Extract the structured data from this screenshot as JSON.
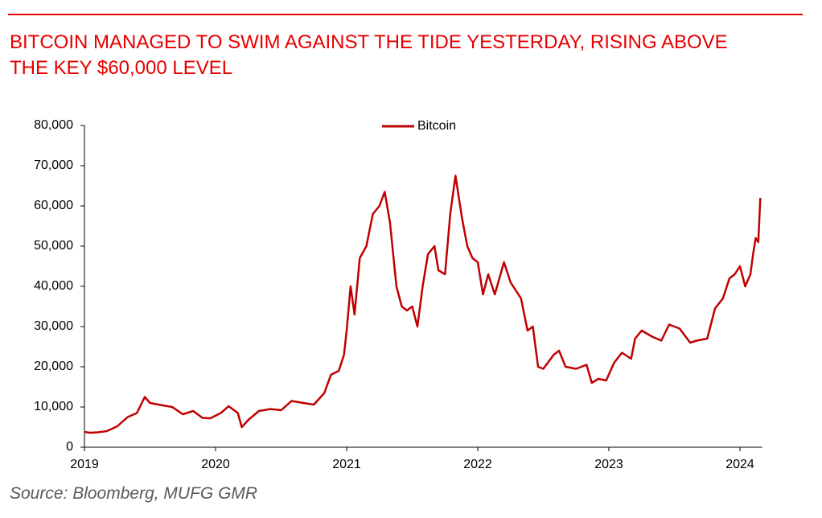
{
  "chart_data": {
    "type": "line",
    "title_lines": [
      "BITCOIN MANAGED TO SWIM AGAINST THE TIDE YESTERDAY, RISING ABOVE",
      "THE KEY $60,000 LEVEL"
    ],
    "source": "Source: Bloomberg, MUFG GMR",
    "x": [
      2019.0,
      2019.04,
      2019.1,
      2019.17,
      2019.25,
      2019.33,
      2019.4,
      2019.46,
      2019.5,
      2019.58,
      2019.67,
      2019.75,
      2019.83,
      2019.9,
      2019.96,
      2020.04,
      2020.1,
      2020.17,
      2020.2,
      2020.25,
      2020.33,
      2020.42,
      2020.5,
      2020.58,
      2020.67,
      2020.75,
      2020.83,
      2020.88,
      2020.94,
      2020.98,
      2021.0,
      2021.03,
      2021.06,
      2021.1,
      2021.15,
      2021.2,
      2021.25,
      2021.29,
      2021.33,
      2021.38,
      2021.42,
      2021.46,
      2021.5,
      2021.54,
      2021.58,
      2021.62,
      2021.67,
      2021.7,
      2021.75,
      2021.79,
      2021.83,
      2021.88,
      2021.92,
      2021.96,
      2022.0,
      2022.04,
      2022.08,
      2022.13,
      2022.2,
      2022.25,
      2022.33,
      2022.38,
      2022.42,
      2022.46,
      2022.5,
      2022.58,
      2022.62,
      2022.67,
      2022.75,
      2022.83,
      2022.87,
      2022.92,
      2022.98,
      2023.04,
      2023.1,
      2023.17,
      2023.2,
      2023.25,
      2023.33,
      2023.4,
      2023.46,
      2023.54,
      2023.62,
      2023.67,
      2023.75,
      2023.81,
      2023.87,
      2023.92,
      2023.96,
      2024.0,
      2024.04,
      2024.08,
      2024.1,
      2024.12,
      2024.14,
      2024.155
    ],
    "series": [
      {
        "name": "Bitcoin",
        "color": "#c00000",
        "values": [
          3800,
          3600,
          3700,
          4000,
          5200,
          7500,
          8500,
          12500,
          11000,
          10500,
          10000,
          8200,
          9000,
          7300,
          7200,
          8500,
          10200,
          8500,
          5000,
          6800,
          9000,
          9500,
          9200,
          11500,
          11000,
          10600,
          13500,
          18000,
          19000,
          23000,
          29000,
          40000,
          33000,
          47000,
          50000,
          58000,
          60000,
          63500,
          56000,
          40000,
          35000,
          34000,
          35000,
          30000,
          40000,
          48000,
          50000,
          44000,
          43000,
          58000,
          67500,
          57000,
          50000,
          47000,
          46000,
          38000,
          43000,
          38000,
          46000,
          41000,
          37000,
          29000,
          30000,
          20000,
          19500,
          23000,
          24000,
          20000,
          19500,
          20500,
          16000,
          17000,
          16600,
          21000,
          23500,
          22000,
          27000,
          29000,
          27500,
          26500,
          30500,
          29500,
          26000,
          26500,
          27000,
          34500,
          37000,
          42000,
          43000,
          45000,
          40000,
          43000,
          48000,
          52000,
          51000,
          62000
        ]
      }
    ],
    "xlim": [
      2019,
      2024.17
    ],
    "xticks": [
      2019,
      2020,
      2021,
      2022,
      2023,
      2024
    ],
    "ylim": [
      0,
      80000
    ],
    "yticks": [
      0,
      {
        "value": 10000,
        "label": "10,000"
      },
      {
        "value": 20000,
        "label": "20,000"
      },
      {
        "value": 30000,
        "label": "30,000"
      },
      {
        "value": 40000,
        "label": "40,000"
      },
      {
        "value": 50000,
        "label": "50,000"
      },
      {
        "value": 60000,
        "label": "60,000"
      },
      {
        "value": 70000,
        "label": "70,000"
      },
      {
        "value": 80000,
        "label": "80,000"
      }
    ],
    "legend": "top"
  }
}
